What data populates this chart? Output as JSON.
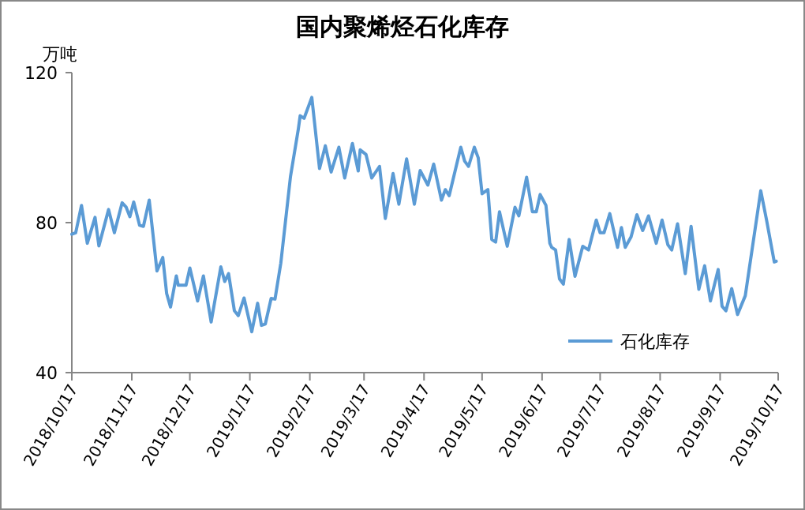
{
  "chart_data": {
    "type": "line",
    "title": "国内聚烯烃石化库存",
    "ylabel": "万吨",
    "x": [
      "2018-10-17",
      "2018-10-19",
      "2018-10-22",
      "2018-10-25",
      "2018-10-29",
      "2018-10-31",
      "2018-11-05",
      "2018-11-08",
      "2018-11-12",
      "2018-11-14",
      "2018-11-16",
      "2018-11-18",
      "2018-11-21",
      "2018-11-23",
      "2018-11-26",
      "2018-11-30",
      "2018-12-03",
      "2018-12-05",
      "2018-12-07",
      "2018-12-10",
      "2018-12-11",
      "2018-12-15",
      "2018-12-17",
      "2018-12-21",
      "2018-12-24",
      "2018-12-28",
      "2019-01-02",
      "2019-01-04",
      "2019-01-06",
      "2019-01-09",
      "2019-01-11",
      "2019-01-14",
      "2019-01-18",
      "2019-01-21",
      "2019-01-23",
      "2019-01-25",
      "2019-01-28",
      "2019-01-30",
      "2019-02-02",
      "2019-02-07",
      "2019-02-11",
      "2019-02-12",
      "2019-02-14",
      "2019-02-18",
      "2019-02-22",
      "2019-02-25",
      "2019-02-28",
      "2019-03-04",
      "2019-03-07",
      "2019-03-11",
      "2019-03-14",
      "2019-03-15",
      "2019-03-18",
      "2019-03-21",
      "2019-03-25",
      "2019-03-28",
      "2019-04-01",
      "2019-04-04",
      "2019-04-08",
      "2019-04-12",
      "2019-04-15",
      "2019-04-19",
      "2019-04-22",
      "2019-04-26",
      "2019-04-28",
      "2019-04-30",
      "2019-05-06",
      "2019-05-08",
      "2019-05-10",
      "2019-05-13",
      "2019-05-15",
      "2019-05-17",
      "2019-05-20",
      "2019-05-22",
      "2019-05-24",
      "2019-05-26",
      "2019-05-30",
      "2019-06-03",
      "2019-06-05",
      "2019-06-09",
      "2019-06-12",
      "2019-06-14",
      "2019-06-16",
      "2019-06-19",
      "2019-06-21",
      "2019-06-22",
      "2019-06-24",
      "2019-06-26",
      "2019-06-28",
      "2019-07-01",
      "2019-07-04",
      "2019-07-08",
      "2019-07-11",
      "2019-07-15",
      "2019-07-17",
      "2019-07-19",
      "2019-07-22",
      "2019-07-26",
      "2019-07-28",
      "2019-07-30",
      "2019-08-02",
      "2019-08-05",
      "2019-08-08",
      "2019-08-11",
      "2019-08-15",
      "2019-08-18",
      "2019-08-21",
      "2019-08-23",
      "2019-08-26",
      "2019-08-30",
      "2019-09-02",
      "2019-09-06",
      "2019-09-09",
      "2019-09-12",
      "2019-09-16",
      "2019-09-18",
      "2019-09-20",
      "2019-09-23",
      "2019-09-26",
      "2019-09-30",
      "2019-10-08",
      "2019-10-11",
      "2019-10-13",
      "2019-10-15",
      "2019-10-16"
    ],
    "series": [
      {
        "name": "石化库存",
        "color": "#5b9bd5",
        "values": [
          76.9,
          77.3,
          84.6,
          74.5,
          81.4,
          73.8,
          83.5,
          77.3,
          85.3,
          84.2,
          81.6,
          85.5,
          79.3,
          79.0,
          86.0,
          67.1,
          70.7,
          61.1,
          57.5,
          65.8,
          63.3,
          63.3,
          67.9,
          59.1,
          65.8,
          53.5,
          68.2,
          64.3,
          66.4,
          56.5,
          55.2,
          59.9,
          50.9,
          58.5,
          52.6,
          53.0,
          59.8,
          59.6,
          69.2,
          92.3,
          104.8,
          108.5,
          107.8,
          113.4,
          94.4,
          100.5,
          93.5,
          100.1,
          91.9,
          101.1,
          93.8,
          99.4,
          98.2,
          91.9,
          95.0,
          81.1,
          93.1,
          84.9,
          97.0,
          84.9,
          93.9,
          90.0,
          95.6,
          86.0,
          88.8,
          87.2,
          100.1,
          96.4,
          95.0,
          100.1,
          97.3,
          87.7,
          88.8,
          75.5,
          74.8,
          82.9,
          73.7,
          84.1,
          81.8,
          92.1,
          82.9,
          82.9,
          87.5,
          84.6,
          74.5,
          73.4,
          72.7,
          65.0,
          63.6,
          75.5,
          65.7,
          73.7,
          72.7,
          80.7,
          77.3,
          77.3,
          82.4,
          73.4,
          78.7,
          73.4,
          76.2,
          82.1,
          77.9,
          81.8,
          74.5,
          80.7,
          74.1,
          72.7,
          79.7,
          66.4,
          79.0,
          62.2,
          68.5,
          59.1,
          67.5,
          57.7,
          56.5,
          62.4,
          55.5,
          60.5,
          88.5,
          80.7,
          75.1,
          69.5,
          69.7
        ]
      }
    ],
    "xlim": [
      "2018-10-17",
      "2019-10-17"
    ],
    "xticks": [
      {
        "value": "2018-10-17",
        "label": "2018/10/17"
      },
      {
        "value": "2018-11-17",
        "label": "2018/11/17"
      },
      {
        "value": "2018-12-17",
        "label": "2018/12/17"
      },
      {
        "value": "2019-01-17",
        "label": "2019/1/17"
      },
      {
        "value": "2019-02-17",
        "label": "2019/2/17"
      },
      {
        "value": "2019-03-17",
        "label": "2019/3/17"
      },
      {
        "value": "2019-04-17",
        "label": "2019/4/17"
      },
      {
        "value": "2019-05-17",
        "label": "2019/5/17"
      },
      {
        "value": "2019-06-17",
        "label": "2019/6/17"
      },
      {
        "value": "2019-07-17",
        "label": "2019/7/17"
      },
      {
        "value": "2019-08-17",
        "label": "2019/8/17"
      },
      {
        "value": "2019-09-17",
        "label": "2019/9/17"
      },
      {
        "value": "2019-10-17",
        "label": "2019/10/17"
      }
    ],
    "ylim": [
      40,
      120
    ],
    "yticks": [
      40,
      80,
      120
    ],
    "grid": false,
    "legend": "bottom right"
  }
}
